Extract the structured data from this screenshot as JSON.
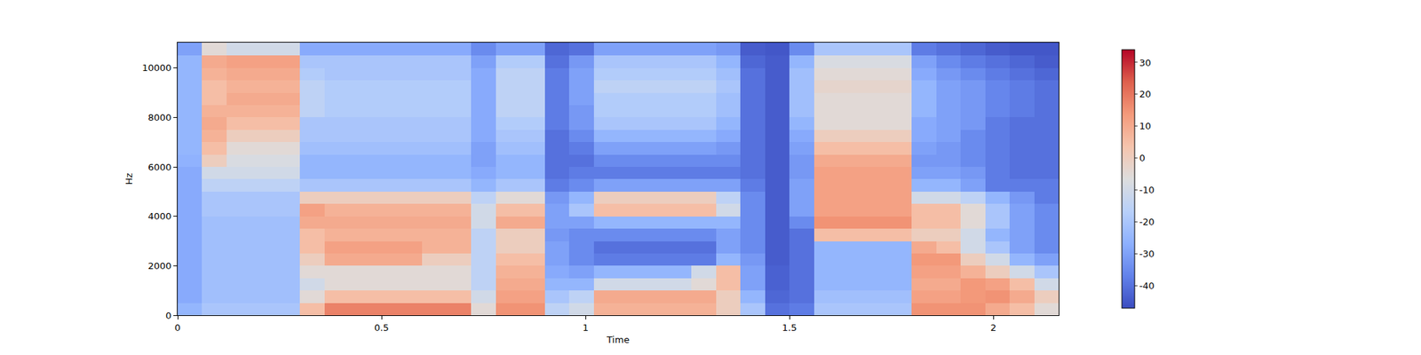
{
  "chart_data": {
    "type": "heatmap",
    "xlabel": "Time",
    "ylabel": "Hz",
    "x": [
      0,
      0.06,
      0.12,
      0.18,
      0.24,
      0.3,
      0.36,
      0.42,
      0.48,
      0.54,
      0.6,
      0.66,
      0.72,
      0.78,
      0.84,
      0.9,
      0.96,
      1.02,
      1.08,
      1.14,
      1.2,
      1.26,
      1.32,
      1.38,
      1.44,
      1.5,
      1.56,
      1.62,
      1.68,
      1.74,
      1.8,
      1.86,
      1.92,
      1.98,
      2.04,
      2.1,
      2.16
    ],
    "y": [
      0,
      500,
      1000,
      1500,
      2000,
      2500,
      3000,
      3500,
      4000,
      4500,
      5000,
      5500,
      6000,
      6500,
      7000,
      7500,
      8000,
      8500,
      9000,
      9500,
      10000,
      10500,
      11025
    ],
    "xlim": [
      0,
      2.16
    ],
    "xticks": [
      0,
      0.5,
      1,
      1.5,
      2
    ],
    "ylim": [
      0,
      11025
    ],
    "yticks": [
      0,
      2000,
      4000,
      6000,
      8000,
      10000
    ],
    "zlim": [
      -47,
      34
    ],
    "zticks": [
      -40,
      -30,
      -20,
      -10,
      0,
      10,
      20,
      30
    ],
    "cells": [
      [
        -25,
        -20,
        -20,
        -20,
        -20,
        5,
        18,
        18,
        18,
        18,
        18,
        18,
        -5,
        15,
        15,
        -15,
        -10,
        8,
        8,
        8,
        8,
        8,
        0,
        -20,
        -40,
        -38,
        -20,
        -20,
        -20,
        -20,
        15,
        15,
        15,
        10,
        5,
        -5
      ],
      [
        -28,
        -22,
        -22,
        -22,
        -22,
        -5,
        5,
        5,
        5,
        5,
        5,
        5,
        -10,
        12,
        12,
        -20,
        -15,
        10,
        10,
        10,
        10,
        10,
        0,
        -25,
        -42,
        -40,
        -22,
        -22,
        -22,
        -22,
        12,
        12,
        14,
        15,
        10,
        0
      ],
      [
        -28,
        -22,
        -22,
        -22,
        -22,
        -10,
        -5,
        -5,
        -5,
        -5,
        -5,
        -5,
        -15,
        10,
        10,
        -25,
        -25,
        -10,
        -10,
        -10,
        -10,
        -5,
        5,
        -30,
        -43,
        -40,
        -25,
        -25,
        -25,
        -25,
        10,
        10,
        14,
        12,
        5,
        -10
      ],
      [
        -28,
        -22,
        -22,
        -22,
        -22,
        -5,
        -5,
        -5,
        -5,
        -5,
        -5,
        -5,
        -15,
        8,
        8,
        -28,
        -30,
        -25,
        -25,
        -25,
        -25,
        -10,
        5,
        -30,
        -43,
        -40,
        -25,
        -25,
        -25,
        -25,
        12,
        12,
        8,
        0,
        -10,
        -20
      ],
      [
        -28,
        -22,
        -22,
        -22,
        -22,
        0,
        10,
        10,
        10,
        10,
        0,
        0,
        -15,
        5,
        5,
        -30,
        -35,
        -38,
        -38,
        -38,
        -38,
        -38,
        -25,
        -32,
        -44,
        -40,
        -25,
        -25,
        -25,
        -25,
        14,
        14,
        0,
        -10,
        -25,
        -30
      ],
      [
        -28,
        -22,
        -22,
        -22,
        -22,
        5,
        12,
        12,
        12,
        12,
        8,
        8,
        -15,
        0,
        0,
        -30,
        -35,
        -40,
        -40,
        -40,
        -40,
        -40,
        -30,
        -35,
        -44,
        -40,
        -25,
        -25,
        -25,
        -25,
        10,
        5,
        -10,
        -20,
        -30,
        -35
      ],
      [
        -28,
        -22,
        -22,
        -22,
        -22,
        5,
        8,
        8,
        8,
        8,
        8,
        8,
        -15,
        0,
        0,
        -32,
        -35,
        -35,
        -35,
        -35,
        -35,
        -35,
        -30,
        -35,
        -44,
        -40,
        5,
        5,
        5,
        5,
        0,
        0,
        -10,
        -25,
        -30,
        -35
      ],
      [
        -28,
        -22,
        -22,
        -22,
        -22,
        10,
        10,
        10,
        10,
        10,
        10,
        10,
        -10,
        10,
        10,
        -30,
        -30,
        -25,
        -25,
        -25,
        -25,
        -25,
        -25,
        -35,
        -44,
        -35,
        15,
        15,
        15,
        15,
        5,
        5,
        -5,
        -20,
        -30,
        -35
      ],
      [
        -28,
        -20,
        -20,
        -20,
        -20,
        12,
        8,
        8,
        8,
        8,
        8,
        8,
        -10,
        5,
        5,
        -30,
        -20,
        5,
        5,
        5,
        5,
        5,
        -10,
        -35,
        -44,
        -30,
        12,
        12,
        12,
        12,
        5,
        5,
        -5,
        -20,
        -30,
        -35
      ],
      [
        -28,
        -20,
        -20,
        -20,
        -20,
        0,
        0,
        0,
        0,
        0,
        0,
        0,
        -15,
        -5,
        -5,
        -32,
        -25,
        0,
        0,
        0,
        0,
        0,
        -15,
        -35,
        -44,
        -30,
        12,
        12,
        12,
        12,
        -10,
        -10,
        -15,
        -25,
        -32,
        -38
      ],
      [
        -28,
        -15,
        -15,
        -15,
        -15,
        -20,
        -20,
        -20,
        -20,
        -20,
        -20,
        -20,
        -25,
        -20,
        -20,
        -38,
        -35,
        -30,
        -30,
        -30,
        -30,
        -30,
        -30,
        -38,
        -44,
        -30,
        12,
        12,
        12,
        12,
        -25,
        -25,
        -30,
        -38,
        -38,
        -38
      ],
      [
        -28,
        -10,
        -10,
        -10,
        -10,
        -25,
        -25,
        -25,
        -25,
        -25,
        -25,
        -25,
        -28,
        -25,
        -25,
        -40,
        -38,
        -38,
        -38,
        -38,
        -38,
        -38,
        -38,
        -40,
        -44,
        -32,
        12,
        12,
        12,
        12,
        -30,
        -30,
        -32,
        -38,
        -40,
        -40
      ],
      [
        -26,
        0,
        -8,
        -8,
        -8,
        -25,
        -25,
        -25,
        -25,
        -25,
        -25,
        -25,
        -30,
        -25,
        -25,
        -40,
        -40,
        -35,
        -35,
        -35,
        -35,
        -35,
        -35,
        -40,
        -44,
        -32,
        10,
        10,
        10,
        10,
        -32,
        -32,
        -35,
        -38,
        -40,
        -40
      ],
      [
        -25,
        5,
        -5,
        -5,
        -5,
        -22,
        -22,
        -22,
        -22,
        -22,
        -22,
        -22,
        -30,
        -22,
        -22,
        -40,
        -38,
        -30,
        -30,
        -30,
        -30,
        -30,
        -32,
        -40,
        -44,
        -30,
        5,
        5,
        5,
        5,
        -30,
        -32,
        -35,
        -38,
        -40,
        -40
      ],
      [
        -25,
        8,
        0,
        0,
        0,
        -20,
        -20,
        -20,
        -20,
        -20,
        -20,
        -20,
        -28,
        -20,
        -20,
        -40,
        -35,
        -25,
        -25,
        -25,
        -25,
        -25,
        -28,
        -40,
        -44,
        -28,
        0,
        0,
        0,
        0,
        -28,
        -30,
        -35,
        -38,
        -40,
        -40
      ],
      [
        -25,
        10,
        5,
        5,
        5,
        -20,
        -20,
        -20,
        -20,
        -20,
        -20,
        -20,
        -28,
        -18,
        -18,
        -38,
        -32,
        -20,
        -20,
        -20,
        -20,
        -20,
        -25,
        -40,
        -44,
        -25,
        -5,
        -5,
        -5,
        -5,
        -28,
        -30,
        -32,
        -38,
        -40,
        -40
      ],
      [
        -25,
        8,
        8,
        8,
        8,
        -15,
        -18,
        -18,
        -18,
        -18,
        -18,
        -18,
        -28,
        -15,
        -15,
        -38,
        -32,
        -18,
        -18,
        -18,
        -18,
        -18,
        -22,
        -40,
        -44,
        -22,
        -5,
        -5,
        -5,
        -5,
        -25,
        -30,
        -32,
        -36,
        -38,
        -40
      ],
      [
        -25,
        5,
        10,
        10,
        10,
        -15,
        -18,
        -18,
        -18,
        -18,
        -18,
        -18,
        -28,
        -15,
        -15,
        -38,
        -30,
        -18,
        -18,
        -18,
        -18,
        -18,
        -22,
        -40,
        -44,
        -22,
        -5,
        -5,
        -5,
        -5,
        -25,
        -30,
        -32,
        -36,
        -38,
        -40
      ],
      [
        -25,
        5,
        8,
        8,
        8,
        -15,
        -18,
        -18,
        -18,
        -18,
        -18,
        -18,
        -28,
        -15,
        -15,
        -38,
        -30,
        -15,
        -15,
        -15,
        -15,
        -15,
        -20,
        -40,
        -44,
        -22,
        -3,
        -3,
        -3,
        -3,
        -25,
        -30,
        -32,
        -36,
        -38,
        -40
      ],
      [
        -25,
        8,
        10,
        10,
        10,
        -18,
        -20,
        -20,
        -20,
        -20,
        -20,
        -20,
        -28,
        -15,
        -15,
        -38,
        -30,
        -18,
        -18,
        -18,
        -18,
        -18,
        -22,
        -40,
        -44,
        -22,
        -5,
        -5,
        -5,
        -5,
        -28,
        -32,
        -35,
        -38,
        -40,
        -42
      ],
      [
        -25,
        10,
        12,
        12,
        12,
        -20,
        -20,
        -20,
        -20,
        -20,
        -20,
        -20,
        -30,
        -18,
        -18,
        -40,
        -32,
        -20,
        -20,
        -20,
        -20,
        -20,
        -25,
        -42,
        -44,
        -25,
        -8,
        -8,
        -8,
        -8,
        -30,
        -35,
        -38,
        -40,
        -42,
        -44
      ],
      [
        -30,
        -5,
        -10,
        -10,
        -10,
        -28,
        -28,
        -28,
        -28,
        -28,
        -28,
        -28,
        -35,
        -30,
        -30,
        -42,
        -40,
        -30,
        -30,
        -30,
        -30,
        -30,
        -32,
        -44,
        -45,
        -35,
        -20,
        -20,
        -20,
        -20,
        -38,
        -40,
        -42,
        -44,
        -45,
        -45
      ]
    ]
  }
}
